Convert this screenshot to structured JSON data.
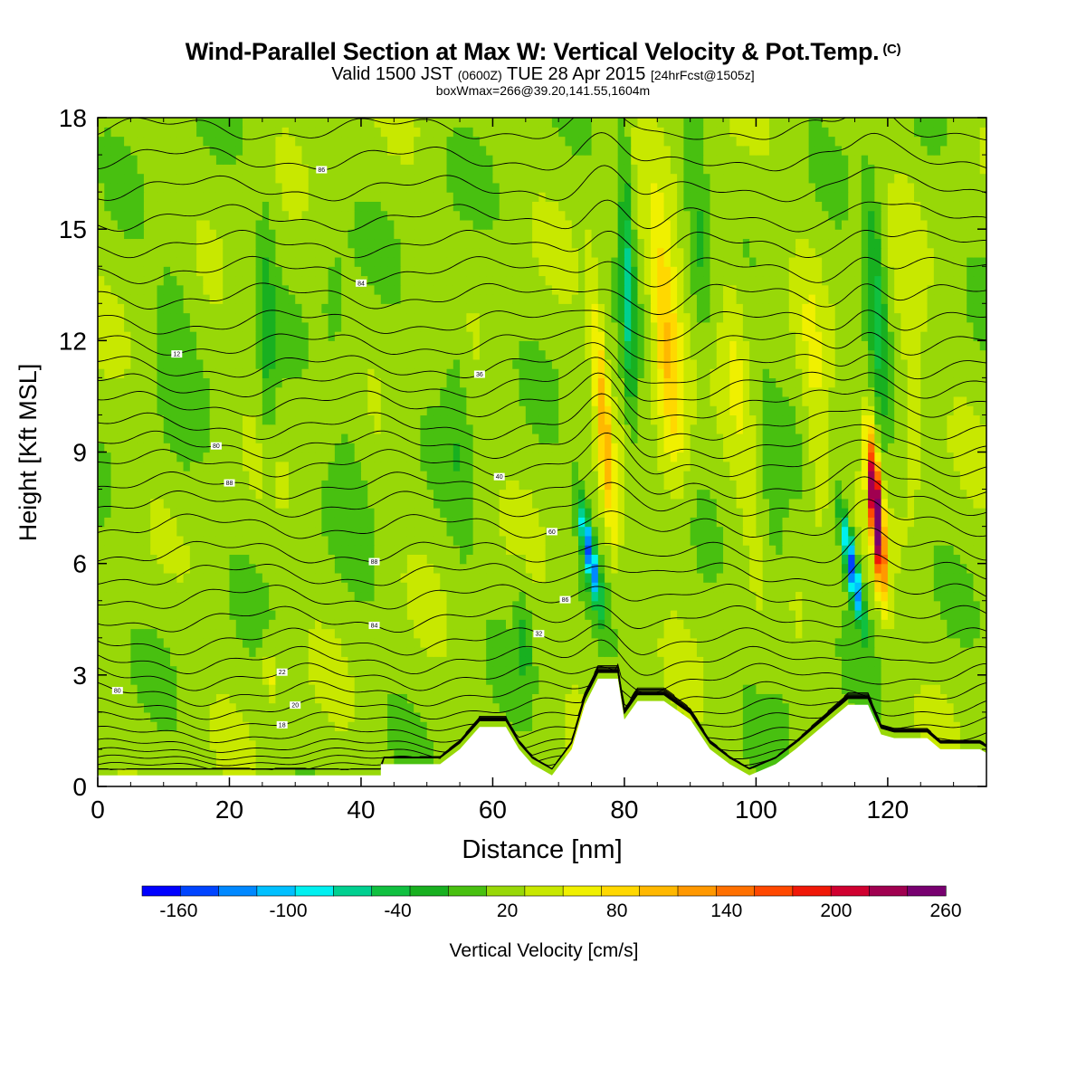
{
  "title": {
    "main": "Wind-Parallel Section at Max W: Vertical Velocity & Pot.Temp.",
    "copyright": "(C)",
    "valid_prefix": "Valid 1500 JST",
    "valid_utc": "(0600Z)",
    "valid_date": "TUE 28 Apr 2015",
    "forecast": "[24hrFcst@1505z]",
    "box_max": "boxWmax=266@39.20,141.55,1604m"
  },
  "chart_data": {
    "type": "heatmap",
    "xlabel": "Distance [nm]",
    "ylabel": "Height [Kft MSL]",
    "xlim": [
      0,
      135
    ],
    "ylim": [
      0,
      18
    ],
    "xticks": [
      "0",
      "20",
      "40",
      "60",
      "80",
      "100",
      "120"
    ],
    "yticks": [
      "0",
      "3",
      "6",
      "9",
      "12",
      "15",
      "18"
    ],
    "colorbar": {
      "label": "Vertical Velocity [cm/s]",
      "tick_labels": [
        "-160",
        "-100",
        "-40",
        "20",
        "80",
        "140",
        "200",
        "260"
      ],
      "levels": [
        -180,
        -160,
        -140,
        -120,
        -100,
        -80,
        -60,
        -40,
        -20,
        0,
        20,
        40,
        60,
        80,
        100,
        120,
        140,
        160,
        180,
        200,
        220,
        240,
        260
      ],
      "colors": [
        "#0000ff",
        "#0044ff",
        "#0088ff",
        "#00c0ff",
        "#00f0f0",
        "#00d090",
        "#10c040",
        "#18b020",
        "#48c010",
        "#98d808",
        "#c8e800",
        "#f0f000",
        "#ffd800",
        "#ffb800",
        "#ff9800",
        "#ff7000",
        "#ff4800",
        "#f01808",
        "#d00030",
        "#a00050",
        "#780070"
      ]
    },
    "background_value": 10,
    "terrain": [
      [
        0,
        0.3
      ],
      [
        43,
        0.3
      ],
      [
        43,
        0.6
      ],
      [
        50,
        0.6
      ],
      [
        52,
        0.6
      ],
      [
        55,
        1.0
      ],
      [
        58,
        1.6
      ],
      [
        62,
        1.6
      ],
      [
        64,
        1.0
      ],
      [
        66,
        0.6
      ],
      [
        69,
        0.3
      ],
      [
        72,
        1.0
      ],
      [
        74,
        2.2
      ],
      [
        76,
        2.9
      ],
      [
        79,
        2.9
      ],
      [
        80,
        1.8
      ],
      [
        82,
        2.3
      ],
      [
        86,
        2.3
      ],
      [
        90,
        1.8
      ],
      [
        93,
        1.0
      ],
      [
        96,
        0.6
      ],
      [
        99,
        0.3
      ],
      [
        103,
        0.6
      ],
      [
        106,
        1.0
      ],
      [
        110,
        1.6
      ],
      [
        114,
        2.2
      ],
      [
        117,
        2.2
      ],
      [
        119,
        1.4
      ],
      [
        121,
        1.3
      ],
      [
        126,
        1.3
      ],
      [
        128,
        1.0
      ],
      [
        134,
        1.0
      ],
      [
        135,
        0.9
      ]
    ],
    "w_features": [
      {
        "x0": 76.5,
        "y0": 4.5,
        "x1": 73.0,
        "y1": 8.0,
        "sx": 0.9,
        "sy": 1.4,
        "amp": -150
      },
      {
        "x0": 78.3,
        "y0": 6.5,
        "x1": 75.5,
        "y1": 13.0,
        "sx": 1.1,
        "sy": 3.5,
        "amp": 75
      },
      {
        "x0": 87.0,
        "y0": 10.5,
        "x1": 86.0,
        "y1": 13.0,
        "sx": 2.2,
        "sy": 3.5,
        "amp": 80
      },
      {
        "x0": 81.0,
        "y0": 10.0,
        "x1": 80.0,
        "y1": 17.0,
        "sx": 1.0,
        "sy": 4.0,
        "amp": -70
      },
      {
        "x0": 116.3,
        "y0": 4.2,
        "x1": 113.0,
        "y1": 7.5,
        "sx": 0.9,
        "sy": 1.5,
        "amp": -165
      },
      {
        "x0": 119.0,
        "y0": 5.8,
        "x1": 117.5,
        "y1": 9.0,
        "sx": 0.9,
        "sy": 1.9,
        "amp": 265
      },
      {
        "x0": 119.5,
        "y0": 9.5,
        "x1": 117.0,
        "y1": 17.0,
        "sx": 1.3,
        "sy": 3.0,
        "amp": -60
      },
      {
        "x0": 92.0,
        "y0": 12.0,
        "x1": 90.0,
        "y1": 18.0,
        "sx": 1.5,
        "sy": 4.0,
        "amp": -30
      },
      {
        "x0": 26.0,
        "y0": 9.0,
        "x1": 25.5,
        "y1": 15.0,
        "sx": 1.2,
        "sy": 3.5,
        "amp": -35
      },
      {
        "x0": 26.5,
        "y0": 2.5,
        "x1": 26.0,
        "y1": 3.5,
        "sx": 1.0,
        "sy": 0.8,
        "amp": 40
      },
      {
        "x0": 55.0,
        "y0": 8.0,
        "x1": 54.0,
        "y1": 13.0,
        "sx": 2.0,
        "sy": 4.0,
        "amp": -22
      },
      {
        "x0": 38.0,
        "y0": 10.0,
        "x1": 36.0,
        "y1": 13.0,
        "sx": 3.0,
        "sy": 5.0,
        "amp": -18
      },
      {
        "x0": 12.0,
        "y0": 10.0,
        "x1": 12.0,
        "y1": 15.0,
        "sx": 3.0,
        "sy": 5.0,
        "amp": -15
      },
      {
        "x0": 65.0,
        "y0": 3.0,
        "x1": 64.5,
        "y1": 5.0,
        "sx": 1.2,
        "sy": 1.5,
        "amp": -35
      },
      {
        "x0": 104.0,
        "y0": 3.0,
        "x1": 102.0,
        "y1": 10.0,
        "sx": 1.6,
        "sy": 4.0,
        "amp": -22
      },
      {
        "x0": 110.0,
        "y0": 6.0,
        "x1": 108.0,
        "y1": 14.0,
        "sx": 1.8,
        "sy": 4.0,
        "amp": 30
      },
      {
        "x0": 124.0,
        "y0": 8.0,
        "x1": 123.0,
        "y1": 14.0,
        "sx": 2.0,
        "sy": 4.0,
        "amp": 25
      },
      {
        "x0": 98.0,
        "y0": 9.0,
        "x1": 96.0,
        "y1": 14.0,
        "sx": 2.0,
        "sy": 4.0,
        "amp": 28
      }
    ],
    "theta_contours": {
      "levels": [
        {
          "base": 0.18,
          "label": "",
          "label_x": 0
        },
        {
          "base": 0.35,
          "label": "",
          "label_x": 0
        },
        {
          "base": 0.52,
          "label": "",
          "label_x": 0
        },
        {
          "base": 0.7,
          "label": "",
          "label_x": 0
        },
        {
          "base": 0.88,
          "label": "",
          "label_x": 0
        },
        {
          "base": 1.1,
          "label": "",
          "label_x": 0
        },
        {
          "base": 1.4,
          "label": "",
          "label_x": 0
        },
        {
          "base": 1.75,
          "label": "18",
          "label_x": 28
        },
        {
          "base": 2.1,
          "label": "20",
          "label_x": 30
        },
        {
          "base": 2.5,
          "label": "80",
          "label_x": 3
        },
        {
          "base": 2.95,
          "label": "22",
          "label_x": 28
        },
        {
          "base": 3.4,
          "label": "",
          "label_x": 0
        },
        {
          "base": 3.9,
          "label": "32",
          "label_x": 67
        },
        {
          "base": 4.5,
          "label": "84",
          "label_x": 42
        },
        {
          "base": 5.1,
          "label": "86",
          "label_x": 71
        },
        {
          "base": 5.7,
          "label": "",
          "label_x": 0
        },
        {
          "base": 6.3,
          "label": "88",
          "label_x": 42
        },
        {
          "base": 7.0,
          "label": "60",
          "label_x": 69
        },
        {
          "base": 7.6,
          "label": "",
          "label_x": 0
        },
        {
          "base": 8.1,
          "label": "88",
          "label_x": 20
        },
        {
          "base": 8.7,
          "label": "40",
          "label_x": 61
        },
        {
          "base": 9.2,
          "label": "80",
          "label_x": 18
        },
        {
          "base": 9.7,
          "label": "",
          "label_x": 0
        },
        {
          "base": 10.3,
          "label": "",
          "label_x": 0
        },
        {
          "base": 10.8,
          "label": "",
          "label_x": 0
        },
        {
          "base": 11.3,
          "label": "36",
          "label_x": 58
        },
        {
          "base": 11.9,
          "label": "12",
          "label_x": 12
        },
        {
          "base": 12.5,
          "label": "",
          "label_x": 0
        },
        {
          "base": 13.2,
          "label": "",
          "label_x": 0
        },
        {
          "base": 13.9,
          "label": "84",
          "label_x": 40
        },
        {
          "base": 14.6,
          "label": "",
          "label_x": 0
        },
        {
          "base": 15.3,
          "label": "",
          "label_x": 0
        },
        {
          "base": 16.1,
          "label": "",
          "label_x": 0
        },
        {
          "base": 16.9,
          "label": "86",
          "label_x": 34
        },
        {
          "base": 17.7,
          "label": "",
          "label_x": 0
        }
      ]
    }
  }
}
